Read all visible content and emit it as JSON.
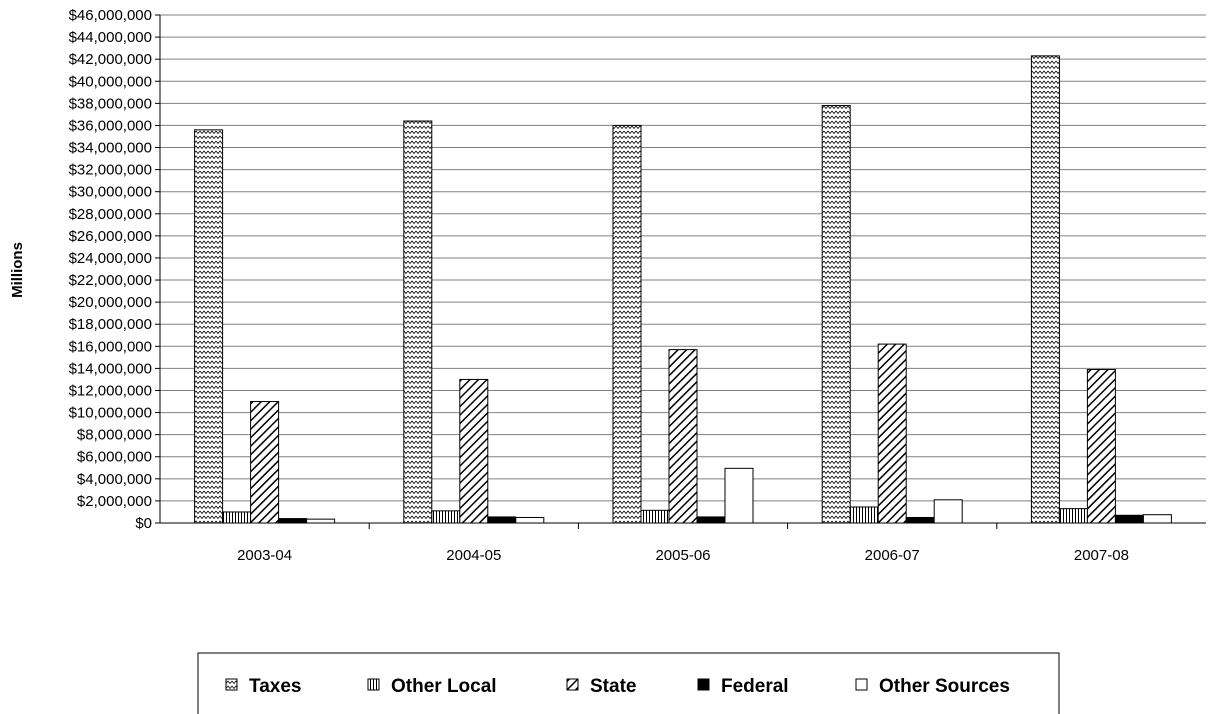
{
  "chart_data": {
    "type": "bar",
    "title": "",
    "xlabel": "",
    "ylabel": "Millions",
    "ylim": [
      0,
      46000000
    ],
    "ytick_step": 2000000,
    "y_tick_format": "currency",
    "grid": true,
    "legend_position": "bottom",
    "categories": [
      "2003-04",
      "2004-05",
      "2005-06",
      "2006-07",
      "2007-08"
    ],
    "series": [
      {
        "name": "Taxes",
        "pattern": "zigzag",
        "values": [
          35600000,
          36400000,
          36000000,
          37800000,
          42300000
        ]
      },
      {
        "name": "Other Local",
        "pattern": "vertical-lines",
        "values": [
          1000000,
          1100000,
          1150000,
          1450000,
          1300000
        ]
      },
      {
        "name": "State",
        "pattern": "diagonal-lines",
        "values": [
          11000000,
          13000000,
          15700000,
          16200000,
          13900000
        ]
      },
      {
        "name": "Federal",
        "pattern": "solid-black",
        "values": [
          400000,
          550000,
          550000,
          500000,
          700000
        ]
      },
      {
        "name": "Other Sources",
        "pattern": "white",
        "values": [
          350000,
          500000,
          4950000,
          2100000,
          750000
        ]
      }
    ],
    "colors": {
      "stroke": "#000000",
      "fill_dark": "#000000",
      "fill_light": "#ffffff",
      "gridline": "#808080"
    }
  }
}
